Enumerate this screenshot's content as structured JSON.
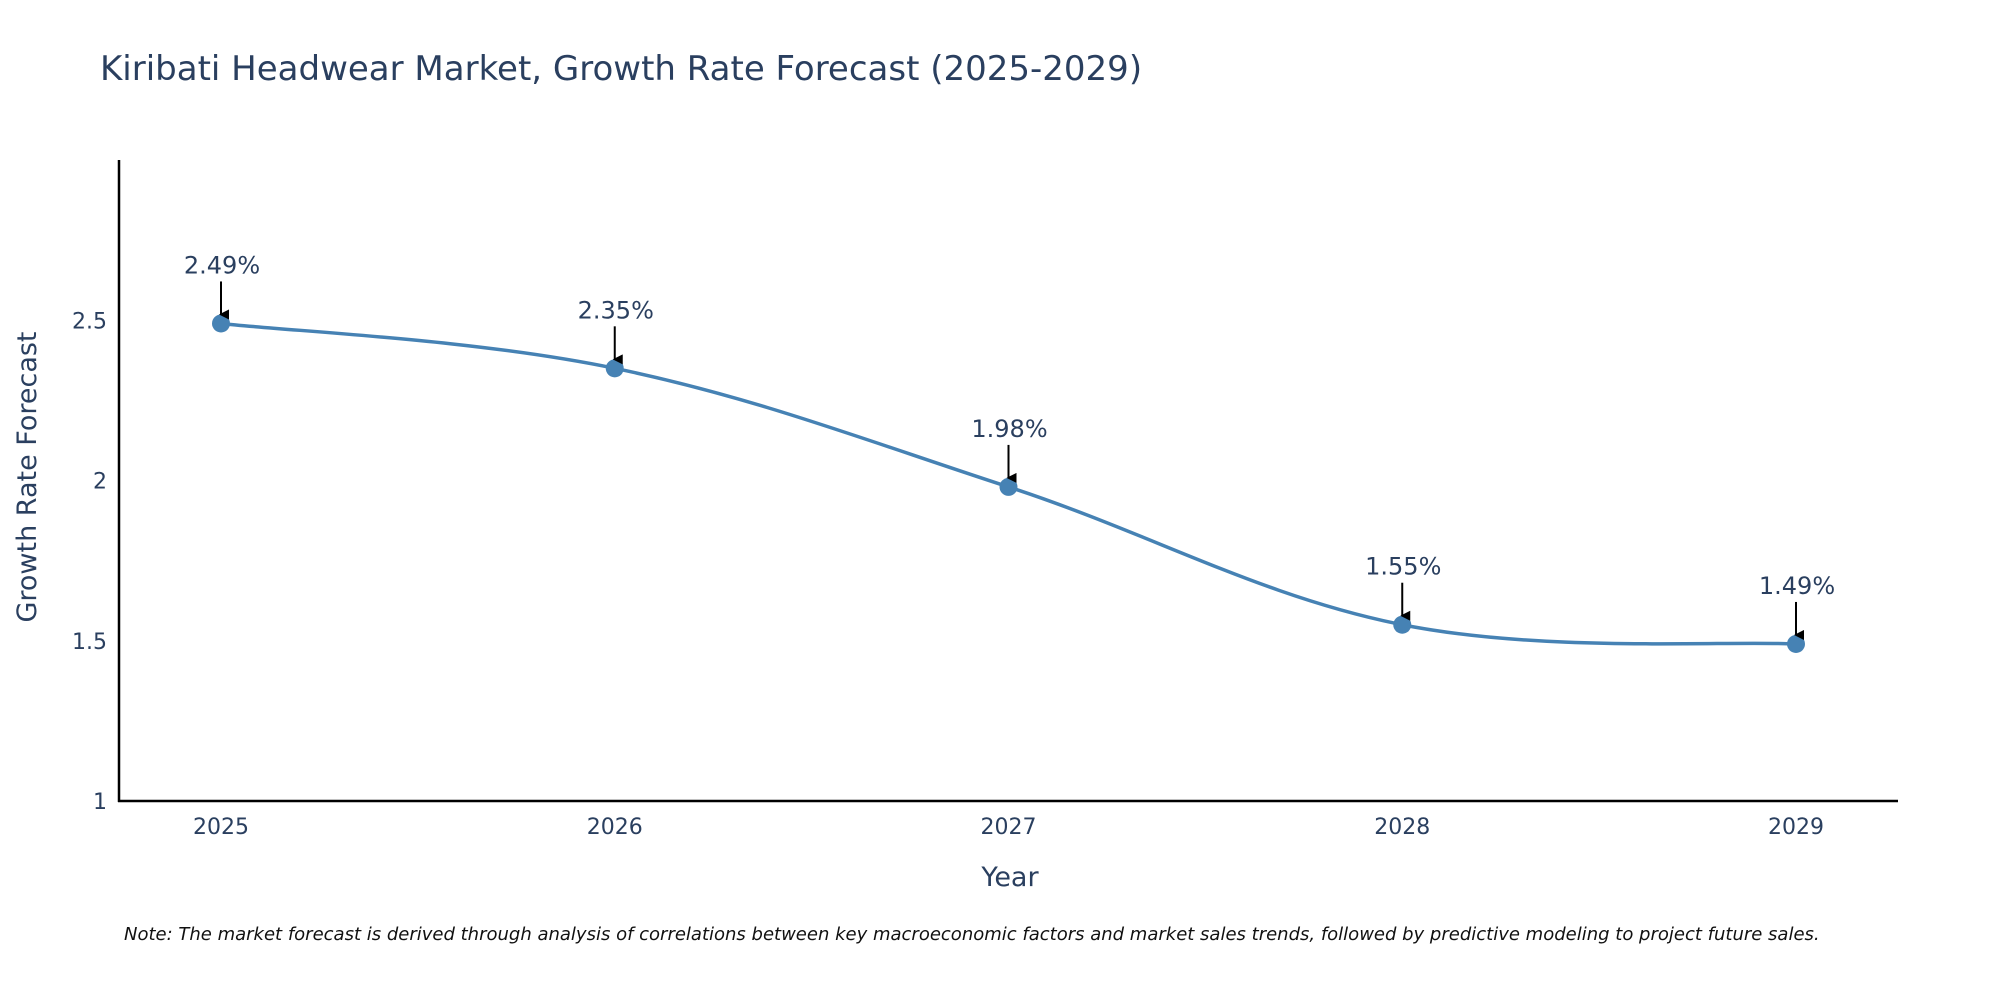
{
  "chart_data": {
    "type": "line",
    "title": "Kiribati Headwear Market, Growth Rate Forecast (2025-2029)",
    "xlabel": "Year",
    "ylabel": "Growth Rate Forecast",
    "categories": [
      "2025",
      "2026",
      "2027",
      "2028",
      "2029"
    ],
    "values": [
      2.49,
      2.35,
      1.98,
      1.55,
      1.49
    ],
    "data_labels": [
      "2.49%",
      "2.35%",
      "1.98%",
      "1.55%",
      "1.49%"
    ],
    "y_ticks": [
      1,
      1.5,
      2,
      2.5
    ],
    "y_tick_labels": [
      "1",
      "1.5",
      "2",
      "2.5"
    ],
    "ylim": [
      1,
      3
    ],
    "line_shape": "spline",
    "grid": false,
    "colors": {
      "line": "#4682b4",
      "marker": "#4682b4",
      "text": "#2a3f5f",
      "axis": "#000000",
      "arrow": "#000000"
    }
  },
  "note": "Note: The market forecast is derived through analysis of correlations between key macroeconomic factors and market sales trends, followed by predictive modeling to project future sales."
}
